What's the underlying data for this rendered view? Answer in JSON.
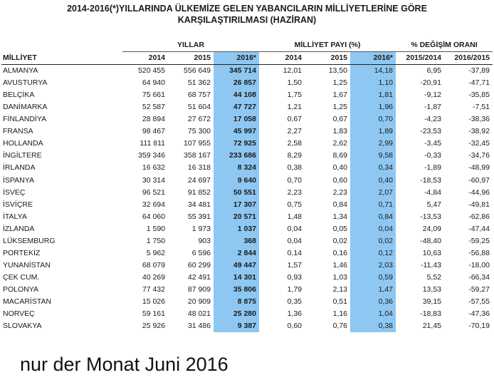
{
  "title_line1": "2014-2016(*)YILLARINDA ÜLKEMİZE GELEN YABANCILARIN MİLLİYETLERİNE GÖRE",
  "title_line2": "KARŞILAŞTIRILMASI (HAZİRAN)",
  "group_headers": {
    "years": "YILLAR",
    "share": "MİLLİYET PAYI (%)",
    "change": "% DEĞİŞİM ORANI"
  },
  "column_headers": {
    "nationality": "MİLLİYET",
    "y2014": "2014",
    "y2015": "2015",
    "y2016": "2016*",
    "p2014": "2014",
    "p2015": "2015",
    "p2016": "2016*",
    "c1514": "2015/2014",
    "c1615": "2016/2015"
  },
  "highlight_color": "#8ec8f2",
  "rows": [
    [
      "ALMANYA",
      "520 455",
      "556 649",
      "345 714",
      "12,01",
      "13,50",
      "14,18",
      "6,95",
      "-37,89"
    ],
    [
      "AVUSTURYA",
      "64 940",
      "51 362",
      "26 857",
      "1,50",
      "1,25",
      "1,10",
      "-20,91",
      "-47,71"
    ],
    [
      "BELÇİKA",
      "75 661",
      "68 757",
      "44 108",
      "1,75",
      "1,67",
      "1,81",
      "-9,12",
      "-35,85"
    ],
    [
      "DANİMARKA",
      "52 587",
      "51 604",
      "47 727",
      "1,21",
      "1,25",
      "1,96",
      "-1,87",
      "-7,51"
    ],
    [
      "FİNLANDİYA",
      "28 894",
      "27 672",
      "17 058",
      "0,67",
      "0,67",
      "0,70",
      "-4,23",
      "-38,36"
    ],
    [
      "FRANSA",
      "98 467",
      "75 300",
      "45 997",
      "2,27",
      "1,83",
      "1,89",
      "-23,53",
      "-38,92"
    ],
    [
      "HOLLANDA",
      "111 811",
      "107 955",
      "72 925",
      "2,58",
      "2,62",
      "2,99",
      "-3,45",
      "-32,45"
    ],
    [
      "İNGİLTERE",
      "359 346",
      "358 167",
      "233 686",
      "8,29",
      "8,69",
      "9,58",
      "-0,33",
      "-34,76"
    ],
    [
      "İRLANDA",
      "16 632",
      "16 318",
      "8 324",
      "0,38",
      "0,40",
      "0,34",
      "-1,89",
      "-48,99"
    ],
    [
      "İSPANYA",
      "30 314",
      "24 697",
      "9 640",
      "0,70",
      "0,60",
      "0,40",
      "-18,53",
      "-60,97"
    ],
    [
      "İSVEÇ",
      "96 521",
      "91 852",
      "50 551",
      "2,23",
      "2,23",
      "2,07",
      "-4,84",
      "-44,96"
    ],
    [
      "İSVİÇRE",
      "32 694",
      "34 481",
      "17 307",
      "0,75",
      "0,84",
      "0,71",
      "5,47",
      "-49,81"
    ],
    [
      "İTALYA",
      "64 060",
      "55 391",
      "20 571",
      "1,48",
      "1,34",
      "0,84",
      "-13,53",
      "-62,86"
    ],
    [
      "İZLANDA",
      "1 590",
      "1 973",
      "1 037",
      "0,04",
      "0,05",
      "0,04",
      "24,09",
      "-47,44"
    ],
    [
      "LÜKSEMBURG",
      "1 750",
      "903",
      "368",
      "0,04",
      "0,02",
      "0,02",
      "-48,40",
      "-59,25"
    ],
    [
      "PORTEKİZ",
      "5 962",
      "6 596",
      "2 844",
      "0,14",
      "0,16",
      "0,12",
      "10,63",
      "-56,88"
    ],
    [
      "YUNANİSTAN",
      "68 079",
      "60 299",
      "49 447",
      "1,57",
      "1,46",
      "2,03",
      "-11,43",
      "-18,00"
    ],
    [
      "ÇEK CUM.",
      "40 269",
      "42 491",
      "14 301",
      "0,93",
      "1,03",
      "0,59",
      "5,52",
      "-66,34"
    ],
    [
      "POLONYA",
      "77 432",
      "87 909",
      "35 806",
      "1,79",
      "2,13",
      "1,47",
      "13,53",
      "-59,27"
    ],
    [
      "MACARİSTAN",
      "15 026",
      "20 909",
      "8 875",
      "0,35",
      "0,51",
      "0,36",
      "39,15",
      "-57,55"
    ],
    [
      "NORVEÇ",
      "59 161",
      "48 021",
      "25 280",
      "1,36",
      "1,16",
      "1,04",
      "-18,83",
      "-47,36"
    ],
    [
      "SLOVAKYA",
      "25 926",
      "31 486",
      "9 387",
      "0,60",
      "0,76",
      "0,38",
      "21,45",
      "-70,19"
    ]
  ],
  "note": "nur der Monat Juni 2016"
}
